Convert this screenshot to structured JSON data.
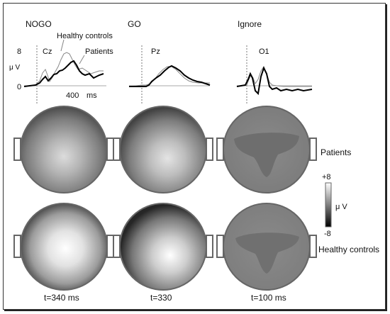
{
  "conditions": [
    {
      "label": "NOGO",
      "channel": "Cz",
      "time": "t=340 ms"
    },
    {
      "label": "GO",
      "channel": "Pz",
      "time": "t=330"
    },
    {
      "label": "Ignore",
      "channel": "O1",
      "time": "t=100 ms"
    }
  ],
  "erp_axis": {
    "y_unit": "μ V",
    "y_tick_top": "8",
    "y_tick_zero": "0",
    "x_tick": "400",
    "x_unit": "ms"
  },
  "erp_legend": {
    "healthy": "Healthy controls",
    "patients": "Patients"
  },
  "map_rows": {
    "patients": "Patients",
    "healthy": "Healthy controls"
  },
  "colorbar": {
    "max": "+8",
    "min": "-8",
    "unit": "μ V",
    "top_color": "#ffffff",
    "bottom_color": "#000000"
  },
  "colors": {
    "healthy_trace": "#888888",
    "patients_trace": "#000000",
    "head_outline": "#666666"
  }
}
